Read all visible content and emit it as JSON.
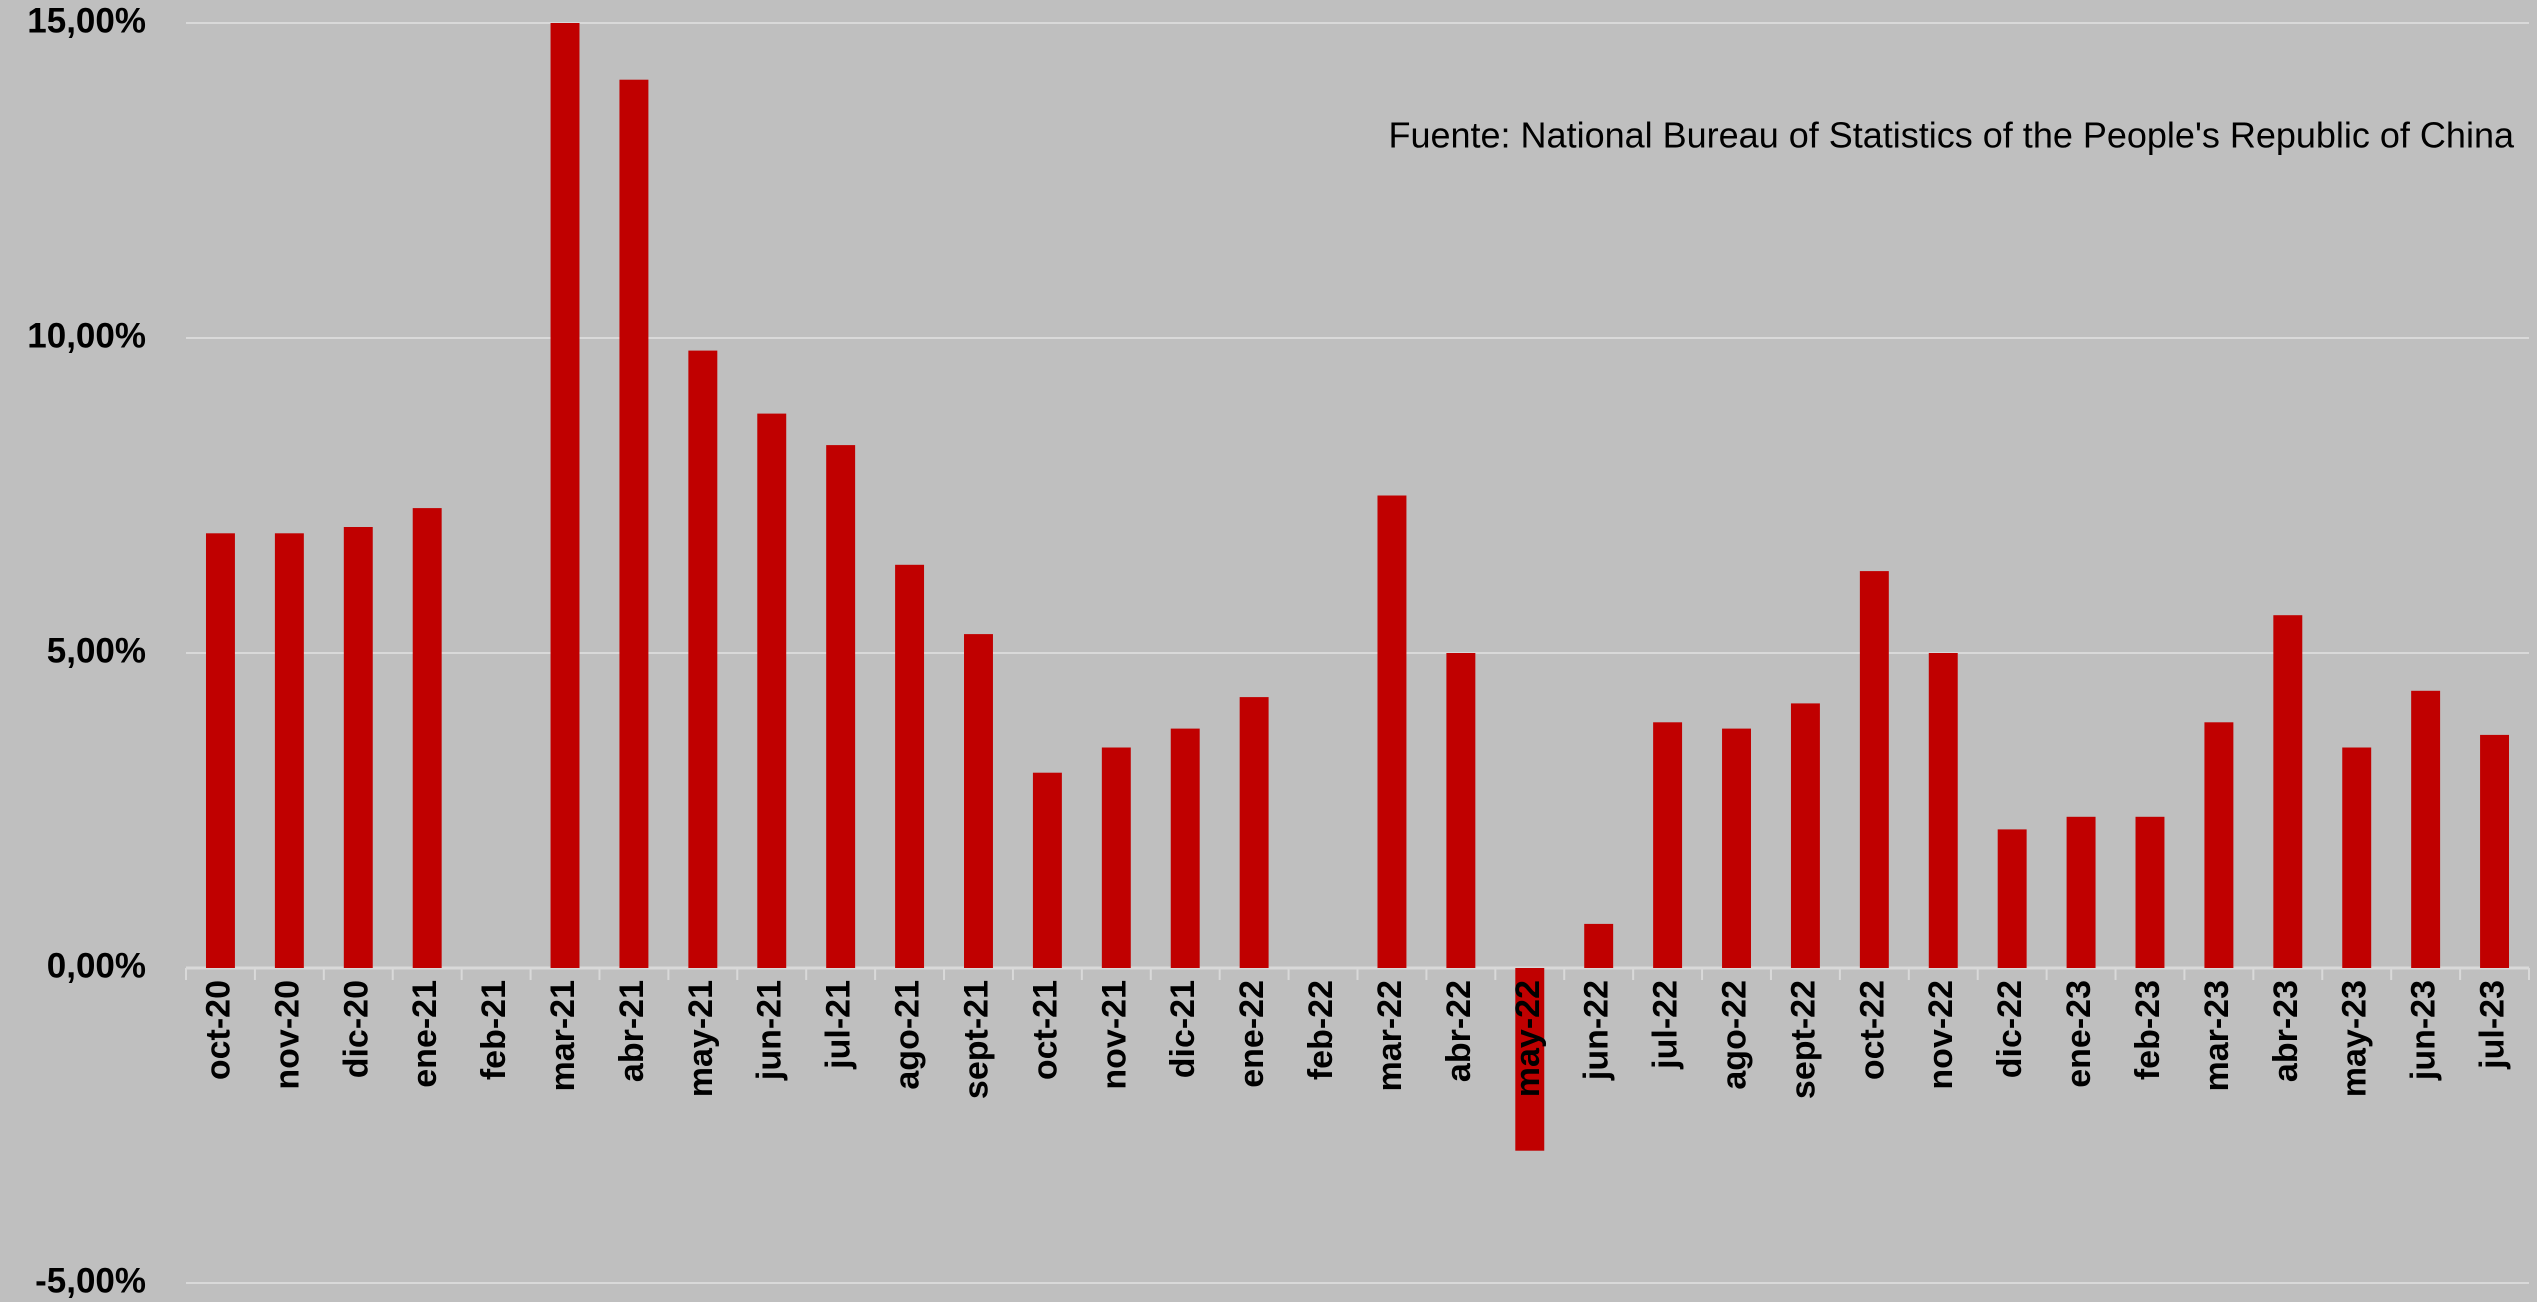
{
  "chart_data": {
    "type": "bar",
    "annotation": "Fuente: National Bureau of Statistics of the People's Republic of China",
    "categories": [
      "oct-20",
      "nov-20",
      "dic-20",
      "ene-21",
      "feb-21",
      "mar-21",
      "abr-21",
      "may-21",
      "jun-21",
      "jul-21",
      "ago-21",
      "sept-21",
      "oct-21",
      "nov-21",
      "dic-21",
      "ene-22",
      "feb-22",
      "mar-22",
      "abr-22",
      "may-22",
      "jun-22",
      "jul-22",
      "ago-22",
      "sept-22",
      "oct-22",
      "nov-22",
      "dic-22",
      "ene-23",
      "feb-23",
      "mar-23",
      "abr-23",
      "may-23",
      "jun-23",
      "jul-23"
    ],
    "values": [
      6.9,
      6.9,
      7.0,
      7.3,
      null,
      15.0,
      14.1,
      9.8,
      8.8,
      8.3,
      6.4,
      5.3,
      3.1,
      3.5,
      3.8,
      4.3,
      null,
      7.5,
      5.0,
      -2.9,
      0.7,
      3.9,
      3.8,
      4.2,
      6.3,
      5.0,
      2.2,
      2.4,
      2.4,
      3.9,
      5.6,
      3.5,
      4.4,
      3.7
    ],
    "color": "#c00000",
    "ylim": [
      -5,
      15
    ],
    "yticks": [
      {
        "value": -5,
        "label": "-5,00%"
      },
      {
        "value": 0,
        "label": "0,00%"
      },
      {
        "value": 5,
        "label": "5,00%"
      },
      {
        "value": 10,
        "label": "10,00%"
      },
      {
        "value": 15,
        "label": "15,00%"
      }
    ],
    "grid": true
  }
}
